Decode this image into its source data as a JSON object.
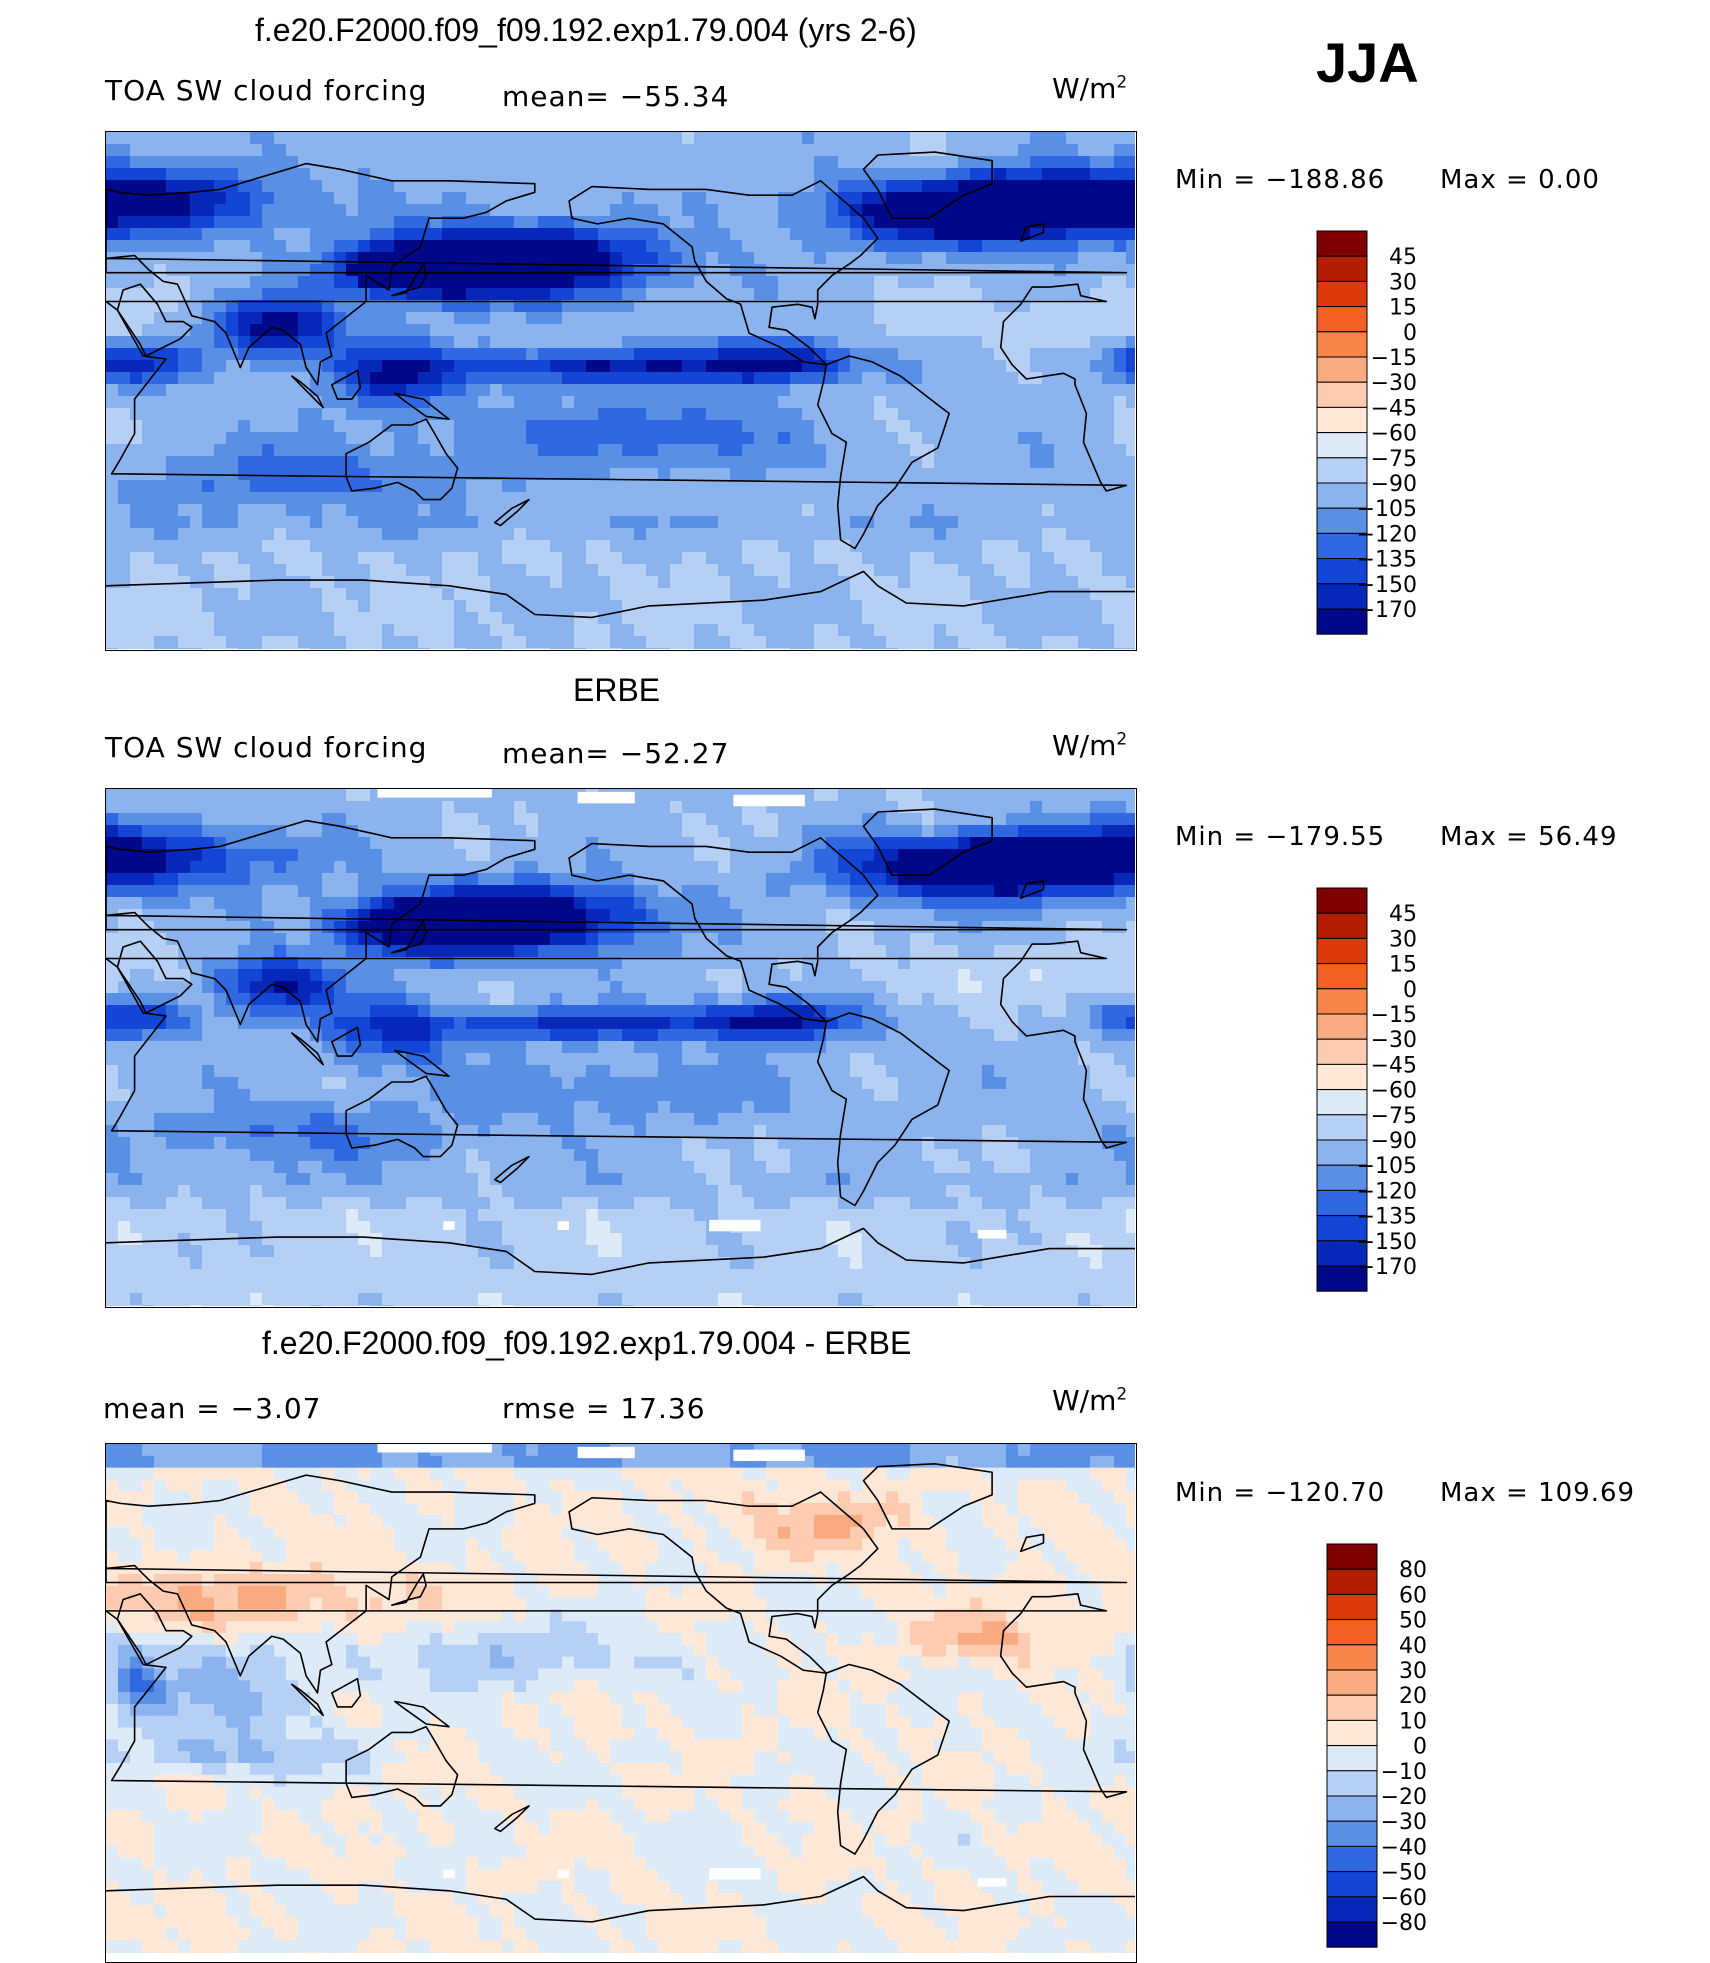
{
  "season": "JJA",
  "panels": [
    {
      "title": "f.e20.F2000.f09_f09.192.exp1.79.004 (yrs 2-6)",
      "left_label": "TOA SW cloud forcing",
      "center_label": "mean=  −55.34",
      "units_base": "W/m",
      "units_exp": "2",
      "min_label": "Min  =  −188.86",
      "max_label": "Max  =     0.00",
      "map_kind": "model",
      "colorbar": {
        "colors": [
          "#7f0000",
          "#b31d00",
          "#dc3a0c",
          "#f26024",
          "#f7854a",
          "#f9aa80",
          "#fccbb0",
          "#fde8d8",
          "#ddeaf8",
          "#b6d0f5",
          "#8bb4ee",
          "#5a8fe6",
          "#2f68e0",
          "#1345d6",
          "#0728b8",
          "#00088a"
        ],
        "labels": [
          "45",
          "30",
          "15",
          "0",
          "−15",
          "−30",
          "−45",
          "−60",
          "−75",
          "−90",
          "−105",
          "−120",
          "−135",
          "−150",
          "−170"
        ]
      }
    },
    {
      "title": "ERBE",
      "left_label": "TOA SW cloud forcing",
      "center_label": "mean=  −52.27",
      "units_base": "W/m",
      "units_exp": "2",
      "min_label": "Min  =  −179.55",
      "max_label": "Max  =   56.49",
      "map_kind": "obs",
      "colorbar": {
        "colors": [
          "#7f0000",
          "#b31d00",
          "#dc3a0c",
          "#f26024",
          "#f7854a",
          "#f9aa80",
          "#fccbb0",
          "#fde8d8",
          "#ddeaf8",
          "#b6d0f5",
          "#8bb4ee",
          "#5a8fe6",
          "#2f68e0",
          "#1345d6",
          "#0728b8",
          "#00088a"
        ],
        "labels": [
          "45",
          "30",
          "15",
          "0",
          "−15",
          "−30",
          "−45",
          "−60",
          "−75",
          "−90",
          "−105",
          "−120",
          "−135",
          "−150",
          "−170"
        ]
      }
    },
    {
      "title": "f.e20.F2000.f09_f09.192.exp1.79.004 - ERBE",
      "left_label": "mean  =    −3.07",
      "center_label": "rmse  =    17.36",
      "units_base": "W/m",
      "units_exp": "2",
      "min_label": "Min  =  −120.70",
      "max_label": "Max  =  109.69",
      "map_kind": "diff",
      "colorbar": {
        "colors": [
          "#7f0000",
          "#b31d00",
          "#dc3a0c",
          "#f26024",
          "#f7854a",
          "#f9aa80",
          "#fccbb0",
          "#fde8d8",
          "#ddeaf8",
          "#b6d0f5",
          "#8bb4ee",
          "#5a8fe6",
          "#2f68e0",
          "#1345d6",
          "#0728b8",
          "#00088a"
        ],
        "labels": [
          "80",
          "60",
          "50",
          "40",
          "30",
          "20",
          "10",
          "0",
          "−10",
          "−20",
          "−30",
          "−40",
          "−50",
          "−60",
          "−80"
        ]
      }
    }
  ],
  "chart_data": [
    {
      "type": "heatmap",
      "title": "f.e20.F2000.f09_f09.192.exp1.79.004 (yrs 2-6)",
      "subtitle": "TOA SW cloud forcing",
      "mean": -55.34,
      "min": -188.86,
      "max": 0.0,
      "units": "W/m2",
      "contour_levels": [
        -170,
        -150,
        -135,
        -120,
        -105,
        -90,
        -75,
        -60,
        -45,
        -30,
        -15,
        0,
        15,
        30,
        45
      ]
    },
    {
      "type": "heatmap",
      "title": "ERBE",
      "subtitle": "TOA SW cloud forcing",
      "mean": -52.27,
      "min": -179.55,
      "max": 56.49,
      "units": "W/m2",
      "contour_levels": [
        -170,
        -150,
        -135,
        -120,
        -105,
        -90,
        -75,
        -60,
        -45,
        -30,
        -15,
        0,
        15,
        30,
        45
      ]
    },
    {
      "type": "heatmap",
      "title": "f.e20.F2000.f09_f09.192.exp1.79.004 - ERBE",
      "mean": -3.07,
      "rmse": 17.36,
      "min": -120.7,
      "max": 109.69,
      "units": "W/m2",
      "contour_levels": [
        -80,
        -60,
        -50,
        -40,
        -30,
        -20,
        -10,
        0,
        10,
        20,
        30,
        40,
        50,
        60,
        80
      ]
    }
  ]
}
